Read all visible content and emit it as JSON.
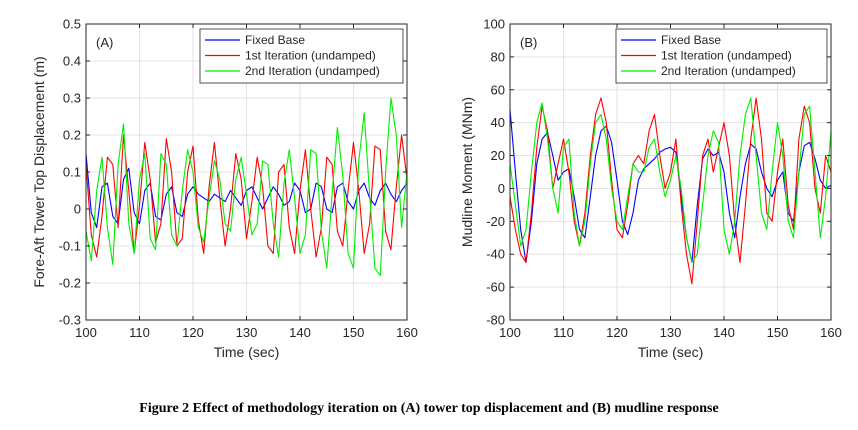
{
  "caption": "Figure 2 Effect of methodology iteration on (A) tower top displacement and (B) mudline response",
  "chart_data": [
    {
      "type": "line",
      "panel_label": "(A)",
      "xlabel": "Time (sec)",
      "ylabel": "Fore-Aft Tower Top Displacement (m)",
      "xlim": [
        100,
        160
      ],
      "ylim": [
        -0.3,
        0.5
      ],
      "xticks": [
        100,
        110,
        120,
        130,
        140,
        150,
        160
      ],
      "yticks": [
        -0.3,
        -0.2,
        -0.1,
        0,
        0.1,
        0.2,
        0.3,
        0.4,
        0.5
      ],
      "grid": true,
      "legend_position": "top-right",
      "series": [
        {
          "name": "Fixed Base",
          "color": "#0000ff",
          "x": [
            100,
            101,
            102,
            103,
            104,
            105,
            106,
            107,
            108,
            109,
            110,
            111,
            112,
            113,
            114,
            115,
            116,
            117,
            118,
            119,
            120,
            121,
            122,
            123,
            124,
            125,
            126,
            127,
            128,
            129,
            130,
            131,
            132,
            133,
            134,
            135,
            136,
            137,
            138,
            139,
            140,
            141,
            142,
            143,
            144,
            145,
            146,
            147,
            148,
            149,
            150,
            151,
            152,
            153,
            154,
            155,
            156,
            157,
            158,
            159,
            160
          ],
          "y": [
            0.15,
            -0.01,
            -0.05,
            0.06,
            0.07,
            -0.02,
            -0.04,
            0.08,
            0.11,
            -0.01,
            -0.04,
            0.05,
            0.07,
            -0.02,
            -0.03,
            0.04,
            0.06,
            -0.01,
            -0.02,
            0.04,
            0.06,
            0.04,
            0.03,
            0.02,
            0.04,
            0.03,
            0.02,
            0.05,
            0.03,
            0.01,
            0.05,
            0.06,
            0.03,
            0.0,
            0.03,
            0.06,
            0.04,
            0.01,
            0.02,
            0.07,
            0.05,
            -0.01,
            0.0,
            0.07,
            0.06,
            0.0,
            -0.01,
            0.06,
            0.07,
            0.02,
            0.0,
            0.05,
            0.07,
            0.03,
            0.01,
            0.05,
            0.07,
            0.04,
            0.02,
            0.05,
            0.07
          ]
        },
        {
          "name": "1st Iteration (undamped)",
          "color": "#ff0000",
          "x": [
            100,
            101,
            102,
            103,
            104,
            105,
            106,
            107,
            108,
            109,
            110,
            111,
            112,
            113,
            114,
            115,
            116,
            117,
            118,
            119,
            120,
            121,
            122,
            123,
            124,
            125,
            126,
            127,
            128,
            129,
            130,
            131,
            132,
            133,
            134,
            135,
            136,
            137,
            138,
            139,
            140,
            141,
            142,
            143,
            144,
            145,
            146,
            147,
            148,
            149,
            150,
            151,
            152,
            153,
            154,
            155,
            156,
            157,
            158,
            159,
            160
          ],
          "y": [
            0.12,
            -0.07,
            -0.13,
            -0.02,
            0.14,
            0.12,
            -0.05,
            0.2,
            0.05,
            -0.12,
            0.01,
            0.18,
            0.08,
            -0.09,
            -0.04,
            0.19,
            0.1,
            -0.1,
            -0.08,
            0.1,
            0.17,
            -0.03,
            -0.12,
            0.06,
            0.18,
            0.03,
            -0.1,
            0.0,
            0.15,
            0.08,
            -0.08,
            0.02,
            0.14,
            0.06,
            -0.1,
            -0.12,
            0.1,
            0.12,
            -0.05,
            -0.12,
            0.05,
            0.16,
            0.0,
            -0.13,
            -0.05,
            0.14,
            0.12,
            -0.06,
            -0.1,
            0.05,
            0.18,
            0.05,
            -0.12,
            -0.04,
            0.17,
            0.16,
            -0.06,
            -0.11,
            0.06,
            0.2,
            0.08
          ]
        },
        {
          "name": "2nd Iteration (undamped)",
          "color": "#00ee00",
          "x": [
            100,
            101,
            102,
            103,
            104,
            105,
            106,
            107,
            108,
            109,
            110,
            111,
            112,
            113,
            114,
            115,
            116,
            117,
            118,
            119,
            120,
            121,
            122,
            123,
            124,
            125,
            126,
            127,
            128,
            129,
            130,
            131,
            132,
            133,
            134,
            135,
            136,
            137,
            138,
            139,
            140,
            141,
            142,
            143,
            144,
            145,
            146,
            147,
            148,
            149,
            150,
            151,
            152,
            153,
            154,
            155,
            156,
            157,
            158,
            159,
            160
          ],
          "y": [
            -0.06,
            -0.14,
            0.05,
            0.14,
            -0.05,
            -0.15,
            0.12,
            0.23,
            -0.04,
            -0.12,
            0.08,
            0.15,
            -0.08,
            -0.11,
            0.15,
            0.12,
            -0.07,
            -0.1,
            0.05,
            0.16,
            0.1,
            -0.05,
            -0.09,
            0.03,
            0.13,
            0.08,
            -0.04,
            -0.06,
            0.08,
            0.14,
            0.04,
            -0.07,
            -0.04,
            0.13,
            0.12,
            -0.04,
            -0.13,
            0.07,
            0.16,
            0.03,
            -0.12,
            -0.07,
            0.16,
            0.15,
            -0.06,
            -0.16,
            0.04,
            0.22,
            0.09,
            -0.12,
            -0.16,
            0.13,
            0.26,
            0.04,
            -0.16,
            -0.18,
            0.1,
            0.3,
            0.2,
            -0.05,
            0.1
          ]
        }
      ]
    },
    {
      "type": "line",
      "panel_label": "(B)",
      "xlabel": "Time (sec)",
      "ylabel": "Mudline Moment (MNm)",
      "xlim": [
        100,
        160
      ],
      "ylim": [
        -80,
        100
      ],
      "xticks": [
        100,
        110,
        120,
        130,
        140,
        150,
        160
      ],
      "yticks": [
        -80,
        -60,
        -40,
        -20,
        0,
        20,
        40,
        60,
        80,
        100
      ],
      "grid": true,
      "legend_position": "top-right",
      "series": [
        {
          "name": "Fixed Base",
          "color": "#0000ff",
          "x": [
            100,
            101,
            102,
            103,
            104,
            105,
            106,
            107,
            108,
            109,
            110,
            111,
            112,
            113,
            114,
            115,
            116,
            117,
            118,
            119,
            120,
            121,
            122,
            123,
            124,
            125,
            126,
            127,
            128,
            129,
            130,
            131,
            132,
            133,
            134,
            135,
            136,
            137,
            138,
            139,
            140,
            141,
            142,
            143,
            144,
            145,
            146,
            147,
            148,
            149,
            150,
            151,
            152,
            153,
            154,
            155,
            156,
            157,
            158,
            159,
            160
          ],
          "y": [
            48,
            10,
            -25,
            -45,
            -20,
            15,
            30,
            34,
            20,
            5,
            10,
            12,
            -5,
            -25,
            -30,
            -5,
            20,
            35,
            38,
            28,
            5,
            -20,
            -28,
            -15,
            5,
            12,
            15,
            18,
            22,
            24,
            25,
            22,
            -5,
            -30,
            -45,
            -10,
            18,
            24,
            20,
            22,
            10,
            -15,
            -30,
            -5,
            15,
            27,
            24,
            10,
            0,
            -5,
            5,
            10,
            -15,
            -20,
            10,
            26,
            28,
            18,
            5,
            0,
            2
          ]
        },
        {
          "name": "1st Iteration (undamped)",
          "color": "#ff0000",
          "x": [
            100,
            101,
            102,
            103,
            104,
            105,
            106,
            107,
            108,
            109,
            110,
            111,
            112,
            113,
            114,
            115,
            116,
            117,
            118,
            119,
            120,
            121,
            122,
            123,
            124,
            125,
            126,
            127,
            128,
            129,
            130,
            131,
            132,
            133,
            134,
            135,
            136,
            137,
            138,
            139,
            140,
            141,
            142,
            143,
            144,
            145,
            146,
            147,
            148,
            149,
            150,
            151,
            152,
            153,
            154,
            155,
            156,
            157,
            158,
            159,
            160
          ],
          "y": [
            -5,
            -25,
            -40,
            -45,
            -15,
            25,
            50,
            35,
            0,
            15,
            30,
            10,
            -20,
            -35,
            -15,
            20,
            45,
            55,
            40,
            5,
            -25,
            -30,
            -10,
            15,
            20,
            15,
            35,
            45,
            20,
            0,
            10,
            30,
            -10,
            -40,
            -58,
            -20,
            20,
            30,
            10,
            25,
            40,
            20,
            -20,
            -45,
            -10,
            30,
            55,
            30,
            -15,
            -20,
            10,
            30,
            -10,
            -25,
            30,
            50,
            40,
            0,
            -15,
            20,
            10
          ]
        },
        {
          "name": "2nd Iteration (undamped)",
          "color": "#00ee00",
          "x": [
            100,
            101,
            102,
            103,
            104,
            105,
            106,
            107,
            108,
            109,
            110,
            111,
            112,
            113,
            114,
            115,
            116,
            117,
            118,
            119,
            120,
            121,
            122,
            123,
            124,
            125,
            126,
            127,
            128,
            129,
            130,
            131,
            132,
            133,
            134,
            135,
            136,
            137,
            138,
            139,
            140,
            141,
            142,
            143,
            144,
            145,
            146,
            147,
            148,
            149,
            150,
            151,
            152,
            153,
            154,
            155,
            156,
            157,
            158,
            159,
            160
          ],
          "y": [
            15,
            -10,
            -35,
            -25,
            10,
            40,
            52,
            30,
            0,
            -15,
            25,
            30,
            -15,
            -35,
            -20,
            15,
            40,
            45,
            30,
            0,
            -20,
            -25,
            -5,
            15,
            10,
            10,
            25,
            30,
            10,
            -5,
            5,
            20,
            0,
            -30,
            -45,
            -40,
            -10,
            20,
            35,
            28,
            -25,
            -40,
            -20,
            20,
            45,
            55,
            20,
            -15,
            -25,
            10,
            40,
            20,
            -20,
            -30,
            10,
            45,
            50,
            10,
            -30,
            -5,
            35
          ]
        }
      ]
    }
  ]
}
